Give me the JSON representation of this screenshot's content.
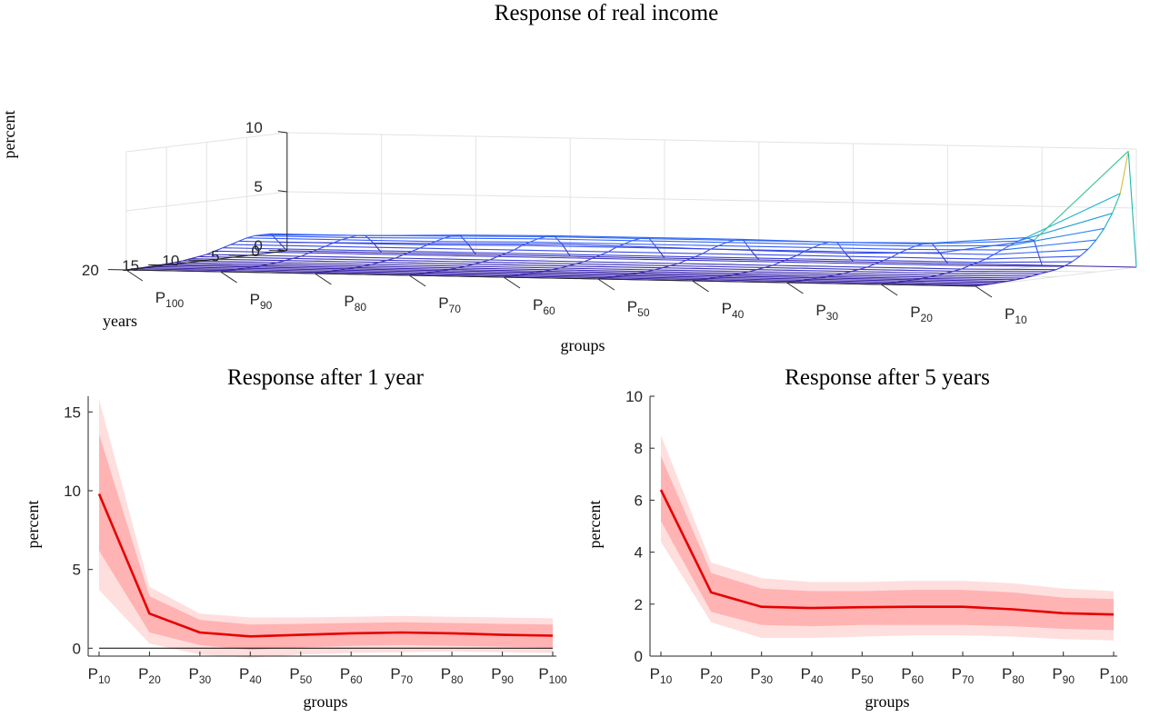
{
  "chart_data": [
    {
      "type": "surface",
      "title": "Response of real income",
      "xlabel": "groups",
      "ylabel": "years",
      "zlabel": "percent",
      "x_tick_labels": [
        {
          "base": "P",
          "sub": "10"
        },
        {
          "base": "P",
          "sub": "20"
        },
        {
          "base": "P",
          "sub": "30"
        },
        {
          "base": "P",
          "sub": "40"
        },
        {
          "base": "P",
          "sub": "50"
        },
        {
          "base": "P",
          "sub": "60"
        },
        {
          "base": "P",
          "sub": "70"
        },
        {
          "base": "P",
          "sub": "80"
        },
        {
          "base": "P",
          "sub": "90"
        },
        {
          "base": "P",
          "sub": "100"
        }
      ],
      "y_ticks": [
        0,
        5,
        10,
        15,
        20
      ],
      "z_ticks": [
        0,
        5,
        10
      ],
      "zlim": [
        0,
        10
      ],
      "ylim": [
        0,
        20
      ],
      "grid": true,
      "years": [
        0,
        1,
        2,
        3,
        4,
        5,
        6,
        7,
        8,
        9,
        10,
        11,
        12,
        13,
        14,
        15,
        16,
        17,
        18,
        19,
        20
      ],
      "series": [
        {
          "name": "P10",
          "values": [
            0,
            9.9,
            6.4,
            4.8,
            3.6,
            2.7,
            2.0,
            1.5,
            1.1,
            0.8,
            0.6,
            0.5,
            0.4,
            0.3,
            0.2,
            0.15,
            0.1,
            0.08,
            0.05,
            0.03,
            0.02
          ]
        },
        {
          "name": "P20",
          "values": [
            0,
            2.2,
            2.5,
            2.3,
            2.0,
            1.7,
            1.4,
            1.1,
            0.9,
            0.7,
            0.5,
            0.4,
            0.3,
            0.2,
            0.15,
            0.1,
            0.08,
            0.05,
            0.03,
            0.02,
            0.01
          ]
        },
        {
          "name": "P30",
          "values": [
            0,
            1.0,
            1.9,
            1.9,
            1.8,
            1.6,
            1.4,
            1.1,
            0.9,
            0.7,
            0.5,
            0.4,
            0.3,
            0.2,
            0.15,
            0.1,
            0.08,
            0.05,
            0.03,
            0.02,
            0.01
          ]
        },
        {
          "name": "P40",
          "values": [
            0,
            0.8,
            1.8,
            1.9,
            1.8,
            1.6,
            1.4,
            1.1,
            0.9,
            0.7,
            0.5,
            0.4,
            0.3,
            0.2,
            0.15,
            0.1,
            0.08,
            0.05,
            0.03,
            0.02,
            0.01
          ]
        },
        {
          "name": "P50",
          "values": [
            0,
            0.9,
            1.9,
            1.9,
            1.8,
            1.6,
            1.4,
            1.1,
            0.9,
            0.7,
            0.5,
            0.4,
            0.3,
            0.2,
            0.15,
            0.1,
            0.08,
            0.05,
            0.03,
            0.02,
            0.01
          ]
        },
        {
          "name": "P60",
          "values": [
            0,
            1.0,
            1.9,
            1.9,
            1.8,
            1.6,
            1.4,
            1.1,
            0.9,
            0.7,
            0.5,
            0.4,
            0.3,
            0.2,
            0.15,
            0.1,
            0.08,
            0.05,
            0.03,
            0.02,
            0.01
          ]
        },
        {
          "name": "P70",
          "values": [
            0,
            1.1,
            1.9,
            1.9,
            1.8,
            1.6,
            1.4,
            1.1,
            0.9,
            0.7,
            0.5,
            0.4,
            0.3,
            0.2,
            0.15,
            0.1,
            0.08,
            0.05,
            0.03,
            0.02,
            0.01
          ]
        },
        {
          "name": "P80",
          "values": [
            0,
            1.0,
            1.8,
            1.8,
            1.7,
            1.5,
            1.3,
            1.1,
            0.9,
            0.7,
            0.5,
            0.4,
            0.3,
            0.2,
            0.15,
            0.1,
            0.08,
            0.05,
            0.03,
            0.02,
            0.01
          ]
        },
        {
          "name": "P90",
          "values": [
            0,
            0.9,
            1.6,
            1.7,
            1.6,
            1.5,
            1.3,
            1.1,
            0.9,
            0.7,
            0.5,
            0.4,
            0.3,
            0.2,
            0.15,
            0.1,
            0.08,
            0.05,
            0.03,
            0.02,
            0.01
          ]
        },
        {
          "name": "P100",
          "values": [
            0,
            0.8,
            1.6,
            1.6,
            1.6,
            1.5,
            1.3,
            1.1,
            0.9,
            0.7,
            0.5,
            0.4,
            0.3,
            0.2,
            0.15,
            0.1,
            0.08,
            0.05,
            0.03,
            0.02,
            0.01
          ]
        }
      ]
    },
    {
      "type": "line",
      "title": "Response after 1 year",
      "xlabel": "groups",
      "ylabel": "percent",
      "categories": [
        {
          "base": "P",
          "sub": "10"
        },
        {
          "base": "P",
          "sub": "20"
        },
        {
          "base": "P",
          "sub": "30"
        },
        {
          "base": "P",
          "sub": "40"
        },
        {
          "base": "P",
          "sub": "50"
        },
        {
          "base": "P",
          "sub": "60"
        },
        {
          "base": "P",
          "sub": "70"
        },
        {
          "base": "P",
          "sub": "80"
        },
        {
          "base": "P",
          "sub": "90"
        },
        {
          "base": "P",
          "sub": "100"
        }
      ],
      "values": [
        9.8,
        2.2,
        1.0,
        0.75,
        0.85,
        0.95,
        1.0,
        0.95,
        0.85,
        0.8
      ],
      "inner_band_lower": [
        6.2,
        1.0,
        0.2,
        -0.1,
        0.05,
        0.15,
        0.2,
        0.15,
        0.1,
        0.05
      ],
      "inner_band_upper": [
        13.6,
        3.3,
        1.8,
        1.5,
        1.55,
        1.6,
        1.65,
        1.6,
        1.55,
        1.5
      ],
      "outer_band_lower": [
        3.7,
        0.3,
        -0.4,
        -0.6,
        -0.4,
        -0.3,
        -0.25,
        -0.2,
        -0.25,
        -0.3
      ],
      "outer_band_upper": [
        15.8,
        3.9,
        2.2,
        1.95,
        1.95,
        2.0,
        2.05,
        2.0,
        1.95,
        1.9
      ],
      "ylim": [
        -0.5,
        16
      ],
      "y_ticks": [
        0,
        5,
        10,
        15
      ],
      "zero_line": true,
      "colors": {
        "line": "#e60000",
        "inner_band": "#ffb3b3",
        "outer_band": "#ffdede"
      }
    },
    {
      "type": "line",
      "title": "Response after 5 years",
      "xlabel": "groups",
      "ylabel": "percent",
      "categories": [
        {
          "base": "P",
          "sub": "10"
        },
        {
          "base": "P",
          "sub": "20"
        },
        {
          "base": "P",
          "sub": "30"
        },
        {
          "base": "P",
          "sub": "40"
        },
        {
          "base": "P",
          "sub": "50"
        },
        {
          "base": "P",
          "sub": "60"
        },
        {
          "base": "P",
          "sub": "70"
        },
        {
          "base": "P",
          "sub": "80"
        },
        {
          "base": "P",
          "sub": "90"
        },
        {
          "base": "P",
          "sub": "100"
        }
      ],
      "values": [
        6.4,
        2.45,
        1.9,
        1.85,
        1.88,
        1.9,
        1.9,
        1.8,
        1.65,
        1.6
      ],
      "inner_band_lower": [
        5.2,
        1.7,
        1.2,
        1.15,
        1.2,
        1.2,
        1.2,
        1.15,
        1.05,
        1.0
      ],
      "inner_band_upper": [
        7.7,
        3.2,
        2.6,
        2.5,
        2.5,
        2.55,
        2.55,
        2.45,
        2.25,
        2.2
      ],
      "outer_band_lower": [
        4.4,
        1.3,
        0.7,
        0.7,
        0.75,
        0.8,
        0.8,
        0.75,
        0.65,
        0.6
      ],
      "outer_band_upper": [
        8.5,
        3.6,
        3.0,
        2.85,
        2.85,
        2.9,
        2.9,
        2.8,
        2.6,
        2.5
      ],
      "ylim": [
        0,
        10
      ],
      "y_ticks": [
        0,
        2,
        4,
        6,
        8,
        10
      ],
      "colors": {
        "line": "#e60000",
        "inner_band": "#ffb3b3",
        "outer_band": "#ffdede"
      }
    }
  ]
}
